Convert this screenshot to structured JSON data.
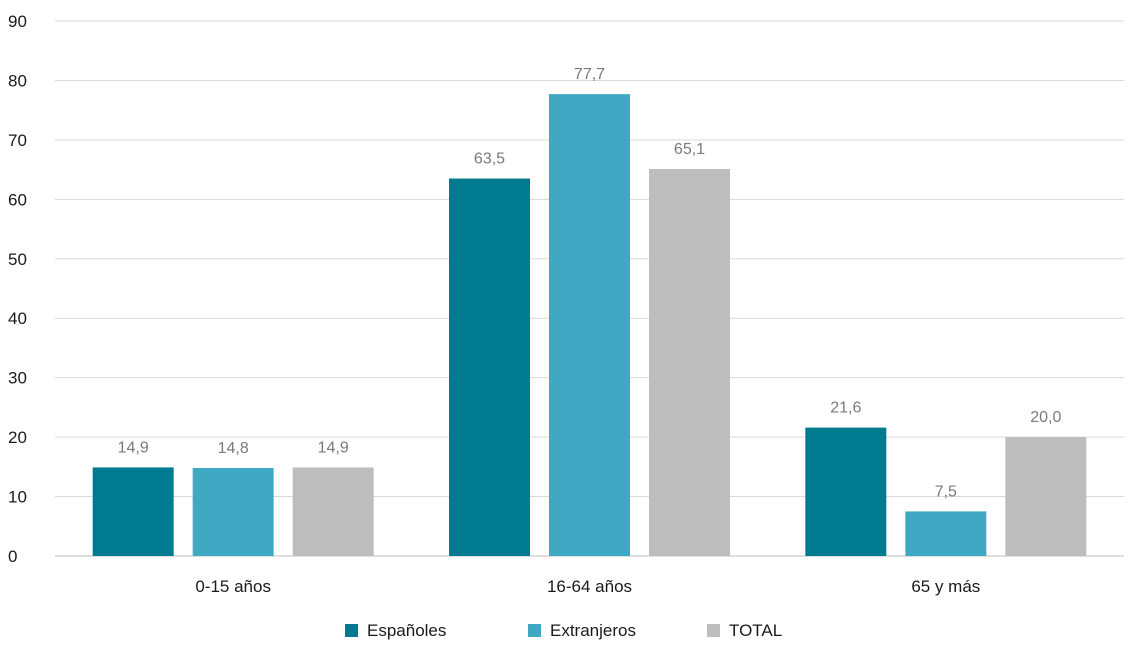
{
  "chart_data": {
    "type": "bar",
    "categories": [
      "0-15 años",
      "16-64 años",
      "65 y más"
    ],
    "series": [
      {
        "name": "Españoles",
        "values": [
          14.9,
          63.5,
          21.6
        ],
        "labels": [
          "14,9",
          "63,5",
          "21,6"
        ],
        "color": "#007A8F"
      },
      {
        "name": "Extranjeros",
        "values": [
          14.8,
          77.7,
          7.5
        ],
        "labels": [
          "14,8",
          "77,7",
          "7,5"
        ],
        "color": "#41A8C4"
      },
      {
        "name": "TOTAL",
        "values": [
          14.9,
          65.1,
          20.0
        ],
        "labels": [
          "14,9",
          "65,1",
          "20,0"
        ],
        "color": "#BDBDBD"
      }
    ],
    "ylim": [
      0,
      90
    ],
    "yticks": [
      0,
      10,
      20,
      30,
      40,
      50,
      60,
      70,
      80,
      90
    ],
    "grid": true,
    "legend_position": "bottom"
  }
}
